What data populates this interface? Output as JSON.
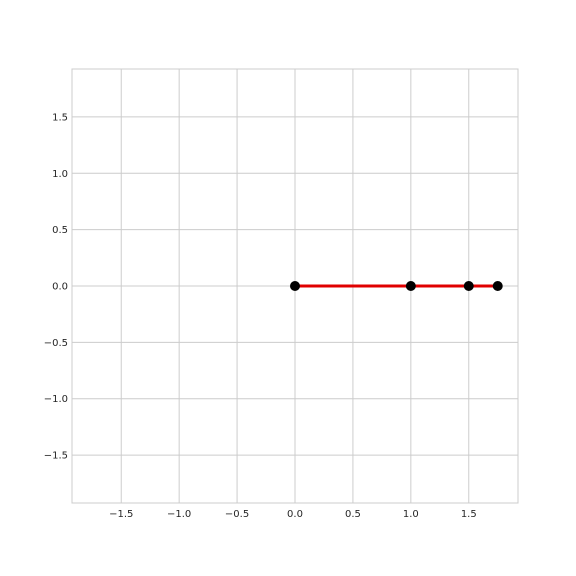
{
  "chart_data": {
    "type": "line",
    "grid": true,
    "xlim": [
      -1.925,
      1.925
    ],
    "ylim": [
      -1.925,
      1.925
    ],
    "x_ticks": [
      -1.5,
      -1.0,
      -0.5,
      0.0,
      0.5,
      1.0,
      1.5
    ],
    "y_ticks": [
      -1.5,
      -1.0,
      -0.5,
      0.0,
      0.5,
      1.0,
      1.5
    ],
    "x_tick_labels": [
      "−1.5",
      "−1.0",
      "−0.5",
      "0.0",
      "0.5",
      "1.0",
      "1.5"
    ],
    "y_tick_labels": [
      "−1.5",
      "−1.0",
      "−0.5",
      "0.0",
      "0.5",
      "1.0",
      "1.5"
    ],
    "series": [
      {
        "x": [
          0.0,
          1.0,
          1.5,
          1.75
        ],
        "y": [
          0.0,
          0.0,
          0.0,
          0.0
        ],
        "line_color": "#e00000",
        "marker_color": "#000000"
      }
    ]
  }
}
